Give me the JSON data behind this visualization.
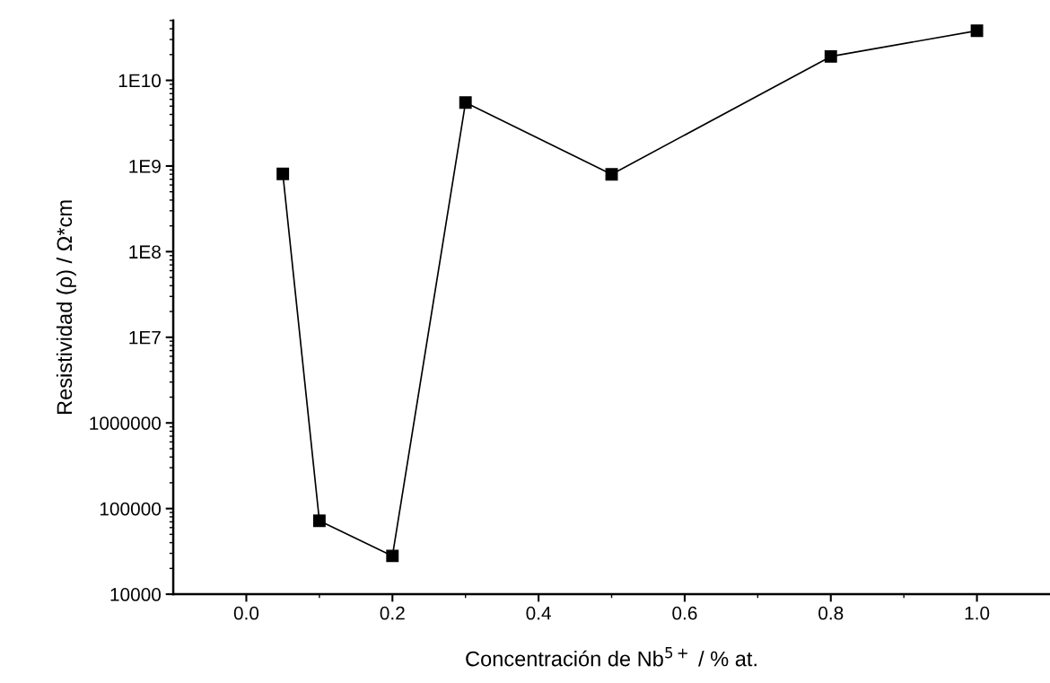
{
  "chart_data": {
    "type": "line",
    "xlabel": "Concentración de Nb$^{5+}$ / % at.",
    "ylabel": "Resistividad (ρ) / Ω*cm",
    "x": [
      0.05,
      0.1,
      0.2,
      0.3,
      0.5,
      0.8,
      1.0
    ],
    "series": [
      {
        "color": "#000000",
        "values": [
          810000000.0,
          72000.0,
          28000.0,
          5500000000.0,
          800000000.0,
          19000000000.0,
          38000000000.0
        ]
      }
    ],
    "xlim": [
      -0.1,
      1.1
    ],
    "xticks": [
      {
        "value": 0,
        "label": "0.0"
      },
      0.2,
      0.4,
      0.6,
      0.8,
      {
        "value": 1,
        "label": "1.0"
      }
    ],
    "ylim": [
      10000.0,
      50000000000.0
    ],
    "yticks": [
      {
        "value": 10000.0,
        "label": "10000"
      },
      {
        "value": 100000.0,
        "label": "100000"
      },
      {
        "value": 1000000.0,
        "label": "1000000"
      },
      {
        "value": 10000000.0,
        "label": "1E7"
      },
      {
        "value": 100000000.0,
        "label": "1E8"
      },
      {
        "value": 1000000000.0,
        "label": "1E9"
      },
      {
        "value": 10000000000.0,
        "label": "1E10"
      }
    ],
    "log": "y",
    "marker": "square",
    "line_style": "solid",
    "grid": false,
    "legend": false
  }
}
